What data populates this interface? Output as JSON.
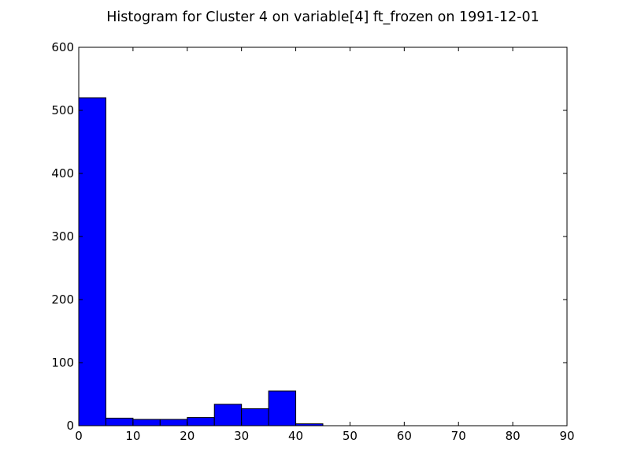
{
  "chart_data": {
    "type": "bar",
    "title": "Histogram for Cluster 4 on variable[4] ft_frozen on 1991-12-01",
    "xlabel": "",
    "ylabel": "",
    "xlim": [
      0,
      90
    ],
    "ylim": [
      0,
      600
    ],
    "xticks": [
      0,
      10,
      20,
      30,
      40,
      50,
      60,
      70,
      80,
      90
    ],
    "yticks": [
      0,
      100,
      200,
      300,
      400,
      500,
      600
    ],
    "grid": false,
    "bar_color": "#0000ff",
    "bins": [
      {
        "x0": 0,
        "x1": 5,
        "count": 520
      },
      {
        "x0": 5,
        "x1": 10,
        "count": 12
      },
      {
        "x0": 10,
        "x1": 15,
        "count": 10
      },
      {
        "x0": 15,
        "x1": 20,
        "count": 10
      },
      {
        "x0": 20,
        "x1": 25,
        "count": 13
      },
      {
        "x0": 25,
        "x1": 30,
        "count": 34
      },
      {
        "x0": 30,
        "x1": 35,
        "count": 27
      },
      {
        "x0": 35,
        "x1": 40,
        "count": 55
      },
      {
        "x0": 40,
        "x1": 45,
        "count": 3
      }
    ]
  }
}
